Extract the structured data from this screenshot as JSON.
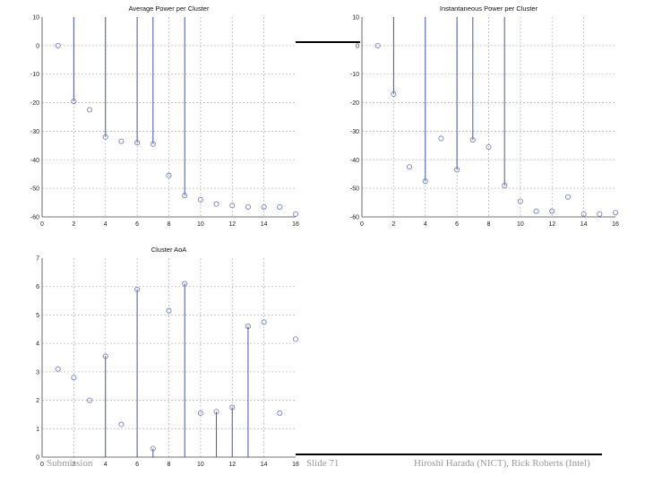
{
  "chart_data": [
    {
      "type": "stem",
      "title": "Average Power per Cluster",
      "xlim": [
        0,
        16
      ],
      "ylim": [
        -60,
        10
      ],
      "xticks": [
        0,
        2,
        4,
        6,
        8,
        10,
        12,
        14,
        16
      ],
      "yticks": [
        10,
        0,
        -10,
        -20,
        -30,
        -40,
        -50,
        -60
      ],
      "grid": true,
      "points": [
        {
          "x": 1,
          "y": 0,
          "stem": false
        },
        {
          "x": 2,
          "y": -19.5,
          "stem": true
        },
        {
          "x": 3,
          "y": -22.5,
          "stem": false
        },
        {
          "x": 4,
          "y": -32,
          "stem": true
        },
        {
          "x": 5,
          "y": -33.5,
          "stem": false
        },
        {
          "x": 6,
          "y": -34,
          "stem": true
        },
        {
          "x": 7,
          "y": -34.5,
          "stem": true
        },
        {
          "x": 8,
          "y": -45.5,
          "stem": false
        },
        {
          "x": 9,
          "y": -52.5,
          "stem": true
        },
        {
          "x": 10,
          "y": -54,
          "stem": false
        },
        {
          "x": 11,
          "y": -55.5,
          "stem": false
        },
        {
          "x": 12,
          "y": -56,
          "stem": false
        },
        {
          "x": 13,
          "y": -56.5,
          "stem": false
        },
        {
          "x": 14,
          "y": -56.5,
          "stem": false
        },
        {
          "x": 15,
          "y": -56.5,
          "stem": false
        },
        {
          "x": 16,
          "y": -59,
          "stem": false
        }
      ]
    },
    {
      "type": "stem",
      "title": "Instantaneous Power per Cluster",
      "xlim": [
        0,
        16
      ],
      "ylim": [
        -60,
        10
      ],
      "xticks": [
        0,
        2,
        4,
        6,
        8,
        10,
        12,
        14,
        16
      ],
      "yticks": [
        10,
        0,
        -10,
        -20,
        -30,
        -40,
        -50,
        -60
      ],
      "grid": true,
      "points": [
        {
          "x": 1,
          "y": 0,
          "stem": false
        },
        {
          "x": 2,
          "y": -17,
          "stem": true
        },
        {
          "x": 3,
          "y": -42.5,
          "stem": false
        },
        {
          "x": 4,
          "y": -47.5,
          "stem": true
        },
        {
          "x": 5,
          "y": -32.5,
          "stem": false
        },
        {
          "x": 6,
          "y": -43.5,
          "stem": true
        },
        {
          "x": 7,
          "y": -33,
          "stem": true
        },
        {
          "x": 8,
          "y": -35.5,
          "stem": false
        },
        {
          "x": 9,
          "y": -49,
          "stem": true
        },
        {
          "x": 10,
          "y": -54.5,
          "stem": false
        },
        {
          "x": 11,
          "y": -58,
          "stem": false
        },
        {
          "x": 12,
          "y": -58,
          "stem": false
        },
        {
          "x": 13,
          "y": -53,
          "stem": false
        },
        {
          "x": 14,
          "y": -59,
          "stem": false
        },
        {
          "x": 15,
          "y": -59,
          "stem": false
        },
        {
          "x": 16,
          "y": -58.5,
          "stem": false
        }
      ]
    },
    {
      "type": "stem",
      "title": "Cluster AoA",
      "xlim": [
        0,
        16
      ],
      "ylim": [
        0,
        7
      ],
      "xticks": [
        0,
        2,
        4,
        6,
        8,
        10,
        12,
        14,
        16
      ],
      "yticks": [
        0,
        1,
        2,
        3,
        4,
        5,
        6,
        7
      ],
      "grid": true,
      "points": [
        {
          "x": 1,
          "y": 3.1,
          "stem": false
        },
        {
          "x": 2,
          "y": 2.8,
          "stem": false
        },
        {
          "x": 3,
          "y": 2.0,
          "stem": false
        },
        {
          "x": 4,
          "y": 3.55,
          "stem": true
        },
        {
          "x": 5,
          "y": 1.15,
          "stem": false
        },
        {
          "x": 6,
          "y": 5.9,
          "stem": true
        },
        {
          "x": 7,
          "y": 0.3,
          "stem": true
        },
        {
          "x": 8,
          "y": 5.15,
          "stem": false
        },
        {
          "x": 9,
          "y": 6.1,
          "stem": true
        },
        {
          "x": 10,
          "y": 1.55,
          "stem": false
        },
        {
          "x": 11,
          "y": 1.6,
          "stem": true
        },
        {
          "x": 12,
          "y": 1.75,
          "stem": true
        },
        {
          "x": 13,
          "y": 4.6,
          "stem": true
        },
        {
          "x": 14,
          "y": 4.75,
          "stem": false
        },
        {
          "x": 15,
          "y": 1.55,
          "stem": false
        },
        {
          "x": 16,
          "y": 4.15,
          "stem": false
        }
      ]
    }
  ],
  "footer": {
    "left": "Submission",
    "center": "Slide 71",
    "right": "Hiroshi Harada (NICT), Rick Roberts (Intel)"
  },
  "colors": {
    "stem": "#4a55a0",
    "marker": "#6b78b8",
    "grid": "#bdbdbd",
    "axis": "#444444"
  }
}
